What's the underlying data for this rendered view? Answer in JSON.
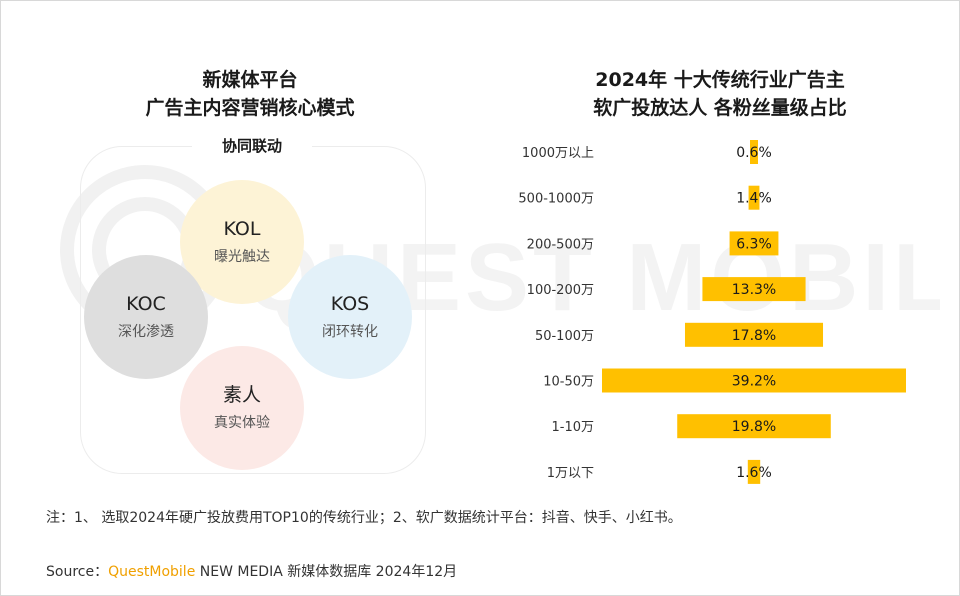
{
  "left_panel": {
    "title_line1": "新媒体平台",
    "title_line2": "广告主内容营销核心模式",
    "box_title": "协同联动",
    "circles": [
      {
        "name": "KOL",
        "desc": "曝光触达",
        "color": "#fdf3d6"
      },
      {
        "name": "KOC",
        "desc": "深化渗透",
        "color": "#dedede"
      },
      {
        "name": "KOS",
        "desc": "闭环转化",
        "color": "#e3f1f9"
      },
      {
        "name": "素人",
        "desc": "真实体验",
        "color": "#fce9e6"
      }
    ]
  },
  "right_panel": {
    "title_line1": "2024年 十大传统行业广告主",
    "title_line2": "软广投放达人 各粉丝量级占比"
  },
  "chart_data": {
    "type": "bar",
    "orientation": "horizontal-centered",
    "title": "2024年 十大传统行业广告主 软广投放达人 各粉丝量级占比",
    "categories": [
      "1000万以上",
      "500-1000万",
      "200-500万",
      "100-200万",
      "50-100万",
      "10-50万",
      "1-10万",
      "1万以下"
    ],
    "values": [
      0.6,
      1.4,
      6.3,
      13.3,
      17.8,
      39.2,
      19.8,
      1.6
    ],
    "labels": [
      "0.6%",
      "1.4%",
      "6.3%",
      "13.3%",
      "17.8%",
      "39.2%",
      "19.8%",
      "1.6%"
    ],
    "unit": "%",
    "bar_color": "#ffc000",
    "label_color": "#1a1a1a"
  },
  "watermark": {
    "text": "QUEST MOBILE"
  },
  "footer": {
    "note": "注：1、 选取2024年硬广投放费用TOP10的传统行业；2、软广数据统计平台：抖音、快手、小红书。",
    "source_prefix": "Source：",
    "source_brand": "QuestMobile",
    "source_rest": " NEW MEDIA 新媒体数据库 2024年12月",
    "brand_color": "#f0a000"
  }
}
